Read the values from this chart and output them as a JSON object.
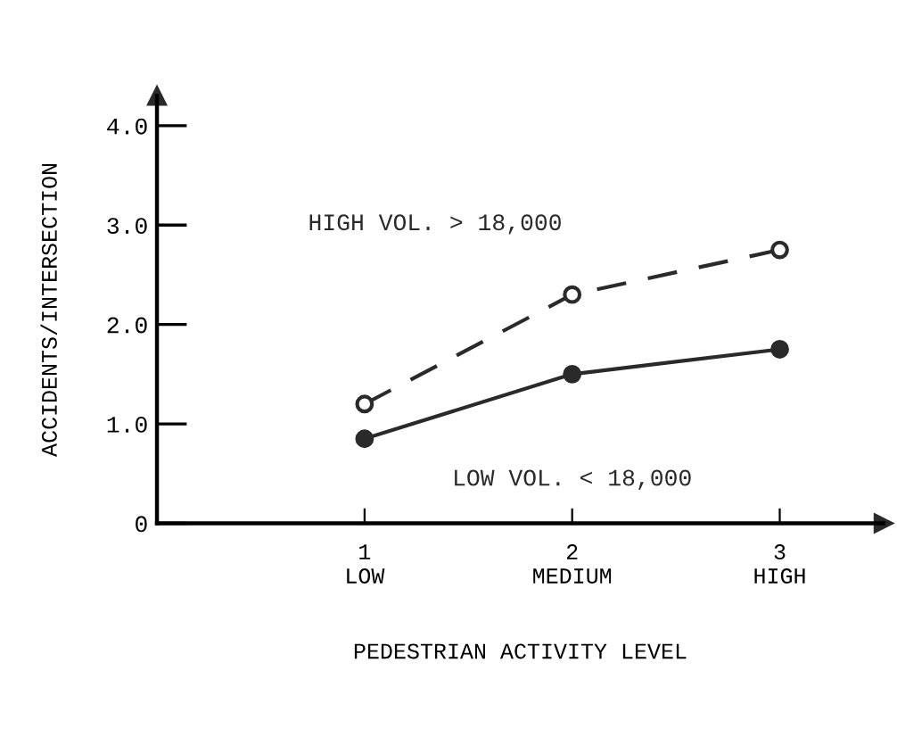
{
  "chart_data": {
    "type": "line",
    "xlabel": "PEDESTRIAN ACTIVITY LEVEL",
    "ylabel": "ACCIDENTS/INTERSECTION",
    "x": [
      1,
      2,
      3
    ],
    "series": [
      {
        "name": "HIGH VOL. > 18,000",
        "color": "#2a2a2a",
        "line_style": "dashed",
        "values": [
          1.2,
          2.3,
          2.75
        ]
      },
      {
        "name": "LOW VOL. < 18,000",
        "color": "#2a2a2a",
        "line_style": "solid",
        "values": [
          0.85,
          1.5,
          1.75
        ]
      }
    ],
    "xlim": [
      0,
      3.5
    ],
    "ylim": [
      0,
      4.3
    ],
    "xticks": [
      {
        "value": 1,
        "label": "1\nLOW"
      },
      {
        "value": 2,
        "label": "2\nMEDIUM"
      },
      {
        "value": 3,
        "label": "3\nHIGH"
      }
    ],
    "yticks": [
      {
        "value": 0,
        "label": "0"
      },
      {
        "value": 1,
        "label": "1.0"
      },
      {
        "value": 2,
        "label": "2.0"
      },
      {
        "value": 3,
        "label": "3.0"
      },
      {
        "value": 4,
        "label": "4.0"
      }
    ],
    "marker": "circle",
    "grid": false,
    "legend": false
  }
}
